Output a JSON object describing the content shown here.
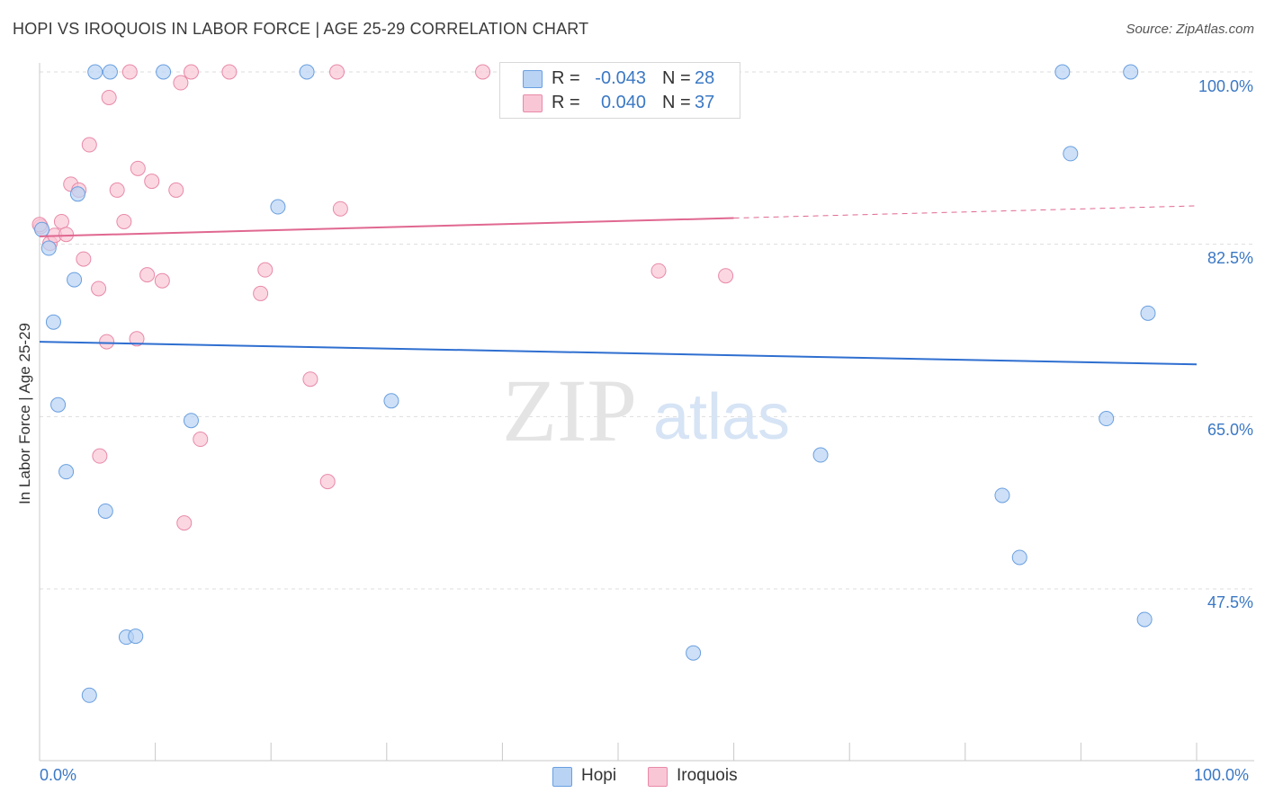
{
  "header": {
    "title": "HOPI VS IROQUOIS IN LABOR FORCE | AGE 25-29 CORRELATION CHART",
    "source": "Source: ZipAtlas.com"
  },
  "watermark": {
    "zip": "ZIP",
    "atlas": "atlas"
  },
  "stats": {
    "hopi": {
      "r_label": "R = ",
      "r_value": "-0.043",
      "n_label": "N = ",
      "n_value": "28"
    },
    "iroquois": {
      "r_label": "R = ",
      "r_value": "0.040",
      "n_label": "N = ",
      "n_value": "37"
    }
  },
  "legend": {
    "hopi": "Hopi",
    "iroquois": "Iroquois"
  },
  "colors": {
    "hopi_fill": "#b8d3f4",
    "hopi_stroke": "#6a9fe0",
    "hopi_line": "#2f6fd0",
    "iroquois_fill": "#f9c6d6",
    "iroquois_stroke": "#e88aa8",
    "iroquois_line": "#e06890",
    "axis_text": "#3b78c4",
    "grid": "#dddddd"
  },
  "chart_data": {
    "type": "scatter",
    "title": "HOPI VS IROQUOIS IN LABOR FORCE | AGE 25-29 CORRELATION CHART",
    "xlabel": "",
    "ylabel": "In Labor Force | Age 25-29",
    "xlim": [
      0,
      100
    ],
    "ylim": [
      32,
      103
    ],
    "x_tick_labels": [
      "0.0%",
      "100.0%"
    ],
    "y_tick_labels": [
      "100.0%",
      "82.5%",
      "65.0%",
      "47.5%"
    ],
    "y_ticks": [
      100,
      82.5,
      65,
      47.5
    ],
    "series": [
      {
        "name": "Hopi",
        "r": -0.043,
        "n": 28,
        "trend": {
          "x": [
            0,
            100
          ],
          "y": [
            72.6,
            70.3
          ],
          "dashed_from": null
        },
        "points": [
          [
            0.2,
            84.0
          ],
          [
            0.8,
            82.1
          ],
          [
            1.2,
            74.6
          ],
          [
            1.6,
            66.2
          ],
          [
            2.3,
            59.4
          ],
          [
            3.0,
            78.9
          ],
          [
            3.3,
            87.6
          ],
          [
            4.3,
            36.7
          ],
          [
            4.8,
            100.0
          ],
          [
            5.7,
            55.4
          ],
          [
            6.1,
            100.0
          ],
          [
            7.5,
            42.6
          ],
          [
            8.3,
            42.7
          ],
          [
            10.7,
            100.0
          ],
          [
            13.1,
            64.6
          ],
          [
            20.6,
            86.3
          ],
          [
            23.1,
            100.0
          ],
          [
            30.4,
            66.6
          ],
          [
            56.5,
            41.0
          ],
          [
            67.5,
            61.1
          ],
          [
            83.2,
            57.0
          ],
          [
            84.7,
            50.7
          ],
          [
            88.4,
            100.0
          ],
          [
            89.1,
            91.7
          ],
          [
            92.2,
            64.8
          ],
          [
            94.3,
            100.0
          ],
          [
            95.5,
            44.4
          ],
          [
            95.8,
            75.5
          ]
        ]
      },
      {
        "name": "Iroquois",
        "r": 0.04,
        "n": 37,
        "trend": {
          "x": [
            0,
            100
          ],
          "y": [
            83.3,
            86.4
          ],
          "dashed_from": 60
        },
        "points": [
          [
            0.1,
            84.3
          ],
          [
            0.9,
            82.6
          ],
          [
            1.3,
            83.4
          ],
          [
            1.9,
            84.8
          ],
          [
            2.3,
            83.5
          ],
          [
            2.7,
            88.6
          ],
          [
            3.4,
            88.0
          ],
          [
            3.8,
            81.0
          ],
          [
            4.3,
            92.6
          ],
          [
            5.1,
            78.0
          ],
          [
            5.2,
            61.0
          ],
          [
            5.8,
            72.6
          ],
          [
            6.0,
            97.4
          ],
          [
            6.7,
            88.0
          ],
          [
            7.3,
            84.8
          ],
          [
            7.8,
            100.0
          ],
          [
            8.4,
            72.9
          ],
          [
            8.5,
            90.2
          ],
          [
            9.3,
            79.4
          ],
          [
            9.7,
            88.9
          ],
          [
            10.6,
            78.8
          ],
          [
            11.8,
            88.0
          ],
          [
            12.2,
            98.9
          ],
          [
            12.5,
            54.2
          ],
          [
            13.1,
            100.0
          ],
          [
            13.9,
            62.7
          ],
          [
            16.4,
            100.0
          ],
          [
            19.1,
            77.5
          ],
          [
            19.5,
            79.9
          ],
          [
            23.4,
            68.8
          ],
          [
            24.9,
            58.4
          ],
          [
            25.7,
            100.0
          ],
          [
            26.0,
            86.1
          ],
          [
            38.3,
            100.0
          ],
          [
            53.5,
            79.8
          ],
          [
            59.3,
            79.3
          ],
          [
            0.0,
            84.5
          ]
        ]
      }
    ]
  }
}
